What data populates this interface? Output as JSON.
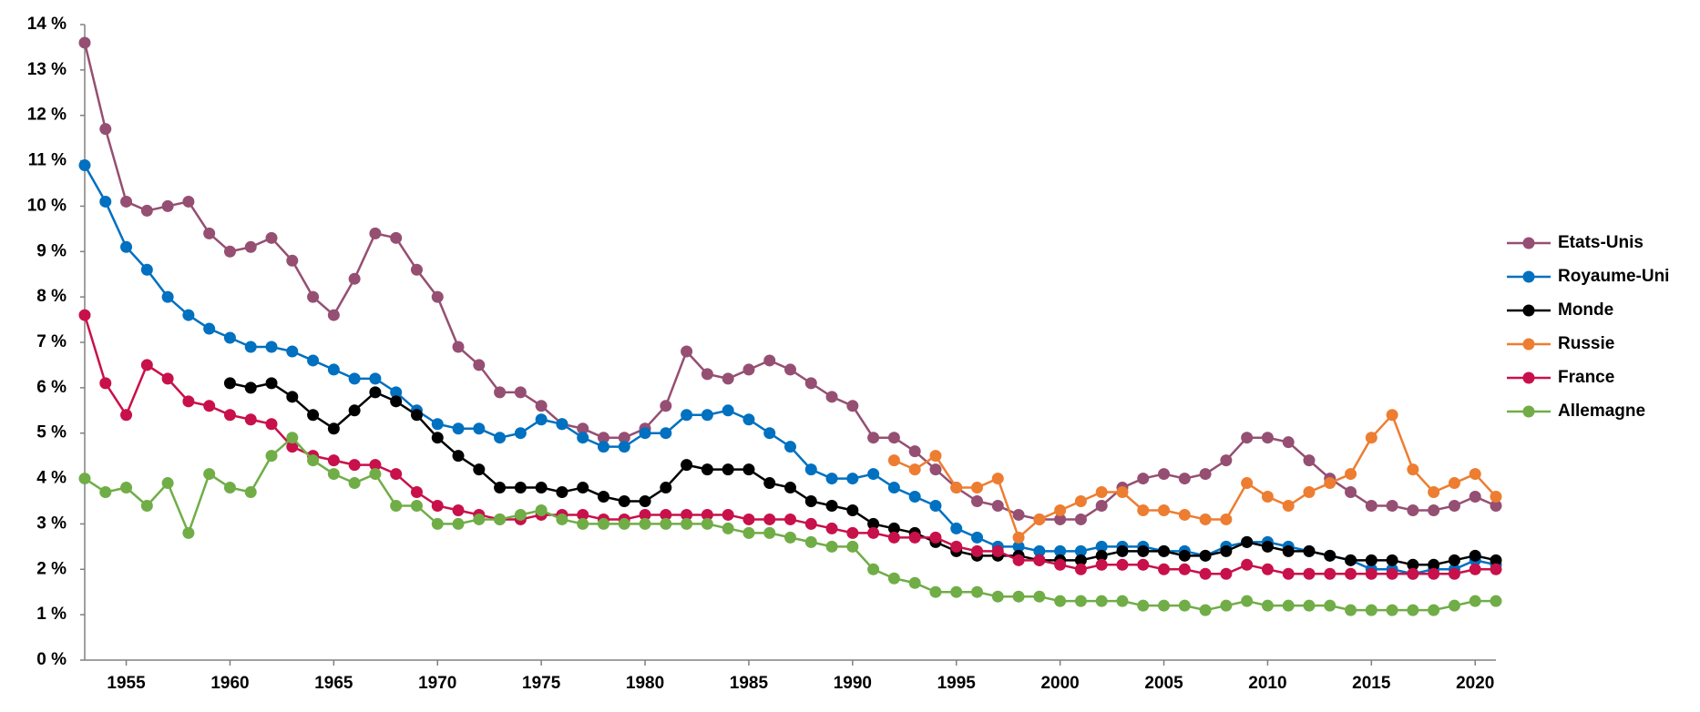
{
  "chart_data": {
    "type": "line",
    "x": [
      1953,
      1954,
      1955,
      1956,
      1957,
      1958,
      1959,
      1960,
      1961,
      1962,
      1963,
      1964,
      1965,
      1966,
      1967,
      1968,
      1969,
      1970,
      1971,
      1972,
      1973,
      1974,
      1975,
      1976,
      1977,
      1978,
      1979,
      1980,
      1981,
      1982,
      1983,
      1984,
      1985,
      1986,
      1987,
      1988,
      1989,
      1990,
      1991,
      1992,
      1993,
      1994,
      1995,
      1996,
      1997,
      1998,
      1999,
      2000,
      2001,
      2002,
      2003,
      2004,
      2005,
      2006,
      2007,
      2008,
      2009,
      2010,
      2011,
      2012,
      2013,
      2014,
      2015,
      2016,
      2017,
      2018,
      2019,
      2020,
      2021
    ],
    "xlim": [
      1953,
      2021
    ],
    "xticks": [
      1955,
      1960,
      1965,
      1970,
      1975,
      1980,
      1985,
      1990,
      1995,
      2000,
      2005,
      2010,
      2015,
      2020
    ],
    "ylim": [
      0,
      14
    ],
    "yticks": [
      {
        "value": 0,
        "label": "0 %"
      },
      {
        "value": 1,
        "label": "1 %"
      },
      {
        "value": 2,
        "label": "2 %"
      },
      {
        "value": 3,
        "label": "3 %"
      },
      {
        "value": 4,
        "label": "4 %"
      },
      {
        "value": 5,
        "label": "5 %"
      },
      {
        "value": 6,
        "label": "6 %"
      },
      {
        "value": 7,
        "label": "7 %"
      },
      {
        "value": 8,
        "label": "8 %"
      },
      {
        "value": 9,
        "label": "9 %"
      },
      {
        "value": 10,
        "label": "10 %"
      },
      {
        "value": 11,
        "label": "11 %"
      },
      {
        "value": 12,
        "label": "12 %"
      },
      {
        "value": 13,
        "label": "13 %"
      },
      {
        "value": 14,
        "label": "14 %"
      }
    ],
    "grid": false,
    "legend": "right",
    "series": [
      {
        "name": "Etats-Unis",
        "color": "#954f72",
        "values": [
          13.6,
          11.7,
          10.1,
          9.9,
          10.0,
          10.1,
          9.4,
          9.0,
          9.1,
          9.3,
          8.8,
          8.0,
          7.6,
          8.4,
          9.4,
          9.3,
          8.6,
          8.0,
          6.9,
          6.5,
          5.9,
          5.9,
          5.6,
          5.2,
          5.1,
          4.9,
          4.9,
          5.1,
          5.6,
          6.8,
          6.3,
          6.2,
          6.4,
          6.6,
          6.4,
          6.1,
          5.8,
          5.6,
          4.9,
          4.9,
          4.6,
          4.2,
          3.8,
          3.5,
          3.4,
          3.2,
          3.1,
          3.1,
          3.1,
          3.4,
          3.8,
          4.0,
          4.1,
          4.0,
          4.1,
          4.4,
          4.9,
          4.9,
          4.8,
          4.4,
          4.0,
          3.7,
          3.4,
          3.4,
          3.3,
          3.3,
          3.4,
          3.6,
          3.4
        ]
      },
      {
        "name": "Royaume-Uni",
        "color": "#0070c0",
        "values": [
          10.9,
          10.1,
          9.1,
          8.6,
          8.0,
          7.6,
          7.3,
          7.1,
          6.9,
          6.9,
          6.8,
          6.6,
          6.4,
          6.2,
          6.2,
          5.9,
          5.5,
          5.2,
          5.1,
          5.1,
          4.9,
          5.0,
          5.3,
          5.2,
          4.9,
          4.7,
          4.7,
          5.0,
          5.0,
          5.4,
          5.4,
          5.5,
          5.3,
          5.0,
          4.7,
          4.2,
          4.0,
          4.0,
          4.1,
          3.8,
          3.6,
          3.4,
          2.9,
          2.7,
          2.5,
          2.5,
          2.4,
          2.4,
          2.4,
          2.5,
          2.5,
          2.5,
          2.4,
          2.4,
          2.3,
          2.5,
          2.6,
          2.6,
          2.5,
          2.4,
          2.3,
          2.2,
          2.0,
          2.0,
          1.9,
          2.0,
          2.0,
          2.2,
          2.1
        ]
      },
      {
        "name": "Monde",
        "color": "#000000",
        "values": [
          null,
          null,
          null,
          null,
          null,
          null,
          null,
          6.1,
          6.0,
          6.1,
          5.8,
          5.4,
          5.1,
          5.5,
          5.9,
          5.7,
          5.4,
          4.9,
          4.5,
          4.2,
          3.8,
          3.8,
          3.8,
          3.7,
          3.8,
          3.6,
          3.5,
          3.5,
          3.8,
          4.3,
          4.2,
          4.2,
          4.2,
          3.9,
          3.8,
          3.5,
          3.4,
          3.3,
          3.0,
          2.9,
          2.8,
          2.6,
          2.4,
          2.3,
          2.3,
          2.3,
          2.2,
          2.2,
          2.2,
          2.3,
          2.4,
          2.4,
          2.4,
          2.3,
          2.3,
          2.4,
          2.6,
          2.5,
          2.4,
          2.4,
          2.3,
          2.2,
          2.2,
          2.2,
          2.1,
          2.1,
          2.2,
          2.3,
          2.2
        ]
      },
      {
        "name": "Russie",
        "color": "#ed7d31",
        "values": [
          null,
          null,
          null,
          null,
          null,
          null,
          null,
          null,
          null,
          null,
          null,
          null,
          null,
          null,
          null,
          null,
          null,
          null,
          null,
          null,
          null,
          null,
          null,
          null,
          null,
          null,
          null,
          null,
          null,
          null,
          null,
          null,
          null,
          null,
          null,
          null,
          null,
          null,
          null,
          4.4,
          4.2,
          4.5,
          3.8,
          3.8,
          4.0,
          2.7,
          3.1,
          3.3,
          3.5,
          3.7,
          3.7,
          3.3,
          3.3,
          3.2,
          3.1,
          3.1,
          3.9,
          3.6,
          3.4,
          3.7,
          3.9,
          4.1,
          4.9,
          5.4,
          4.2,
          3.7,
          3.9,
          4.1,
          3.6
        ]
      },
      {
        "name": "France",
        "color": "#c8104a",
        "values": [
          7.6,
          6.1,
          5.4,
          6.5,
          6.2,
          5.7,
          5.6,
          5.4,
          5.3,
          5.2,
          4.7,
          4.5,
          4.4,
          4.3,
          4.3,
          4.1,
          3.7,
          3.4,
          3.3,
          3.2,
          3.1,
          3.1,
          3.2,
          3.2,
          3.2,
          3.1,
          3.1,
          3.2,
          3.2,
          3.2,
          3.2,
          3.2,
          3.1,
          3.1,
          3.1,
          3.0,
          2.9,
          2.8,
          2.8,
          2.7,
          2.7,
          2.7,
          2.5,
          2.4,
          2.4,
          2.2,
          2.2,
          2.1,
          2.0,
          2.1,
          2.1,
          2.1,
          2.0,
          2.0,
          1.9,
          1.9,
          2.1,
          2.0,
          1.9,
          1.9,
          1.9,
          1.9,
          1.9,
          1.9,
          1.9,
          1.9,
          1.9,
          2.0,
          2.0
        ]
      },
      {
        "name": "Allemagne",
        "color": "#70ad47",
        "values": [
          4.0,
          3.7,
          3.8,
          3.4,
          3.9,
          2.8,
          4.1,
          3.8,
          3.7,
          4.5,
          4.9,
          4.4,
          4.1,
          3.9,
          4.1,
          3.4,
          3.4,
          3.0,
          3.0,
          3.1,
          3.1,
          3.2,
          3.3,
          3.1,
          3.0,
          3.0,
          3.0,
          3.0,
          3.0,
          3.0,
          3.0,
          2.9,
          2.8,
          2.8,
          2.7,
          2.6,
          2.5,
          2.5,
          2.0,
          1.8,
          1.7,
          1.5,
          1.5,
          1.5,
          1.4,
          1.4,
          1.4,
          1.3,
          1.3,
          1.3,
          1.3,
          1.2,
          1.2,
          1.2,
          1.1,
          1.2,
          1.3,
          1.2,
          1.2,
          1.2,
          1.2,
          1.1,
          1.1,
          1.1,
          1.1,
          1.1,
          1.2,
          1.3,
          1.3
        ]
      }
    ]
  }
}
